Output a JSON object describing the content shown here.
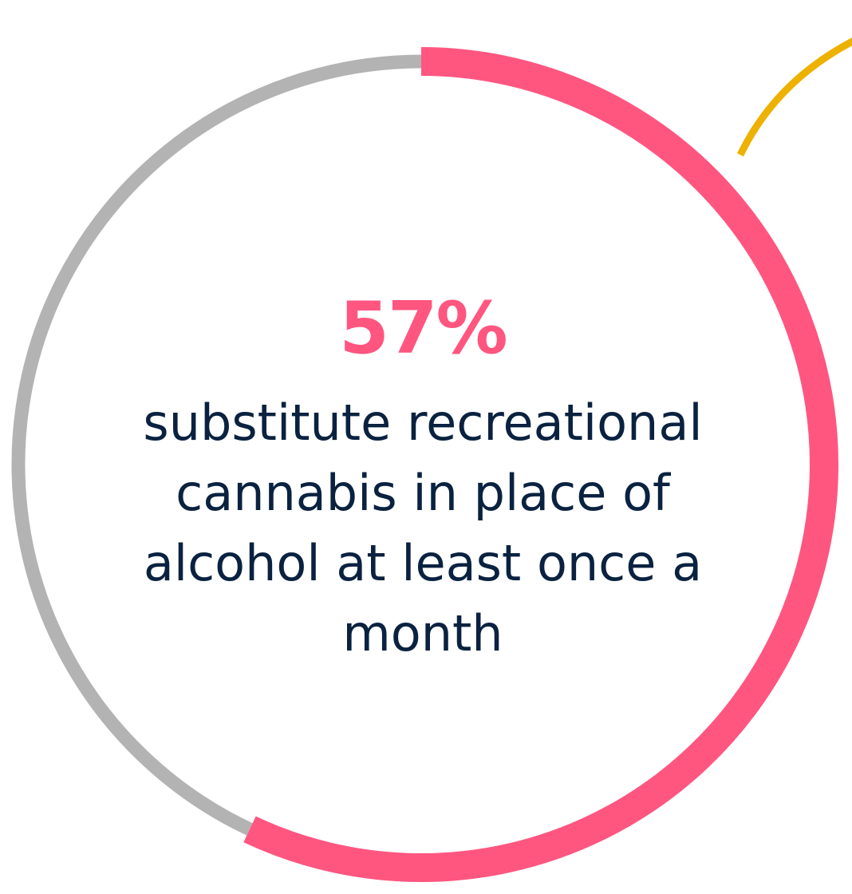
{
  "stat": {
    "value_label": "57%",
    "description": "substitute recreational cannabis in place of alcohol at least once a month"
  },
  "colors": {
    "highlight": "#ff5680",
    "remainder": "#b3b3b3",
    "accent": "#edb100",
    "text": "#0a2240"
  },
  "chart_data": {
    "type": "pie",
    "variant": "donut",
    "values": [
      57,
      43
    ],
    "value_labels": [
      "57%",
      ""
    ],
    "colors": [
      "#ff5680",
      "#b3b3b3"
    ],
    "start": "top",
    "direction": "clockwise"
  }
}
